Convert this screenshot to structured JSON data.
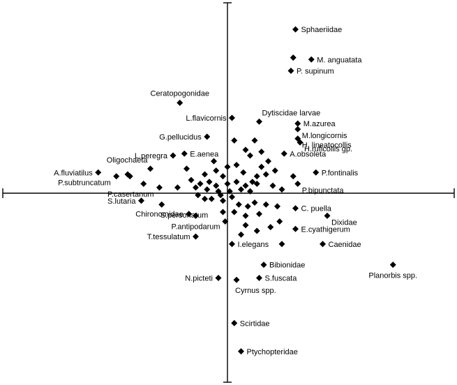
{
  "chart_data": {
    "type": "scatter",
    "title": "",
    "xlabel": "",
    "ylabel": "",
    "xlim": [
      -1.0,
      1.0
    ],
    "ylim": [
      -1.0,
      1.0
    ],
    "x_cross": 0,
    "y_cross": 0,
    "grid": false,
    "marker": "diamond",
    "marker_color": "#000000",
    "points": [
      {
        "x": 0.3,
        "y": 0.87,
        "label": "Sphaeriidae",
        "anchor": "right"
      },
      {
        "x": 0.37,
        "y": 0.71,
        "label": "M. anguatata",
        "anchor": "right"
      },
      {
        "x": 0.29,
        "y": 0.72
      },
      {
        "x": 0.28,
        "y": 0.65,
        "label": "P. supinum",
        "anchor": "right"
      },
      {
        "x": -0.21,
        "y": 0.48,
        "label": "Ceratopogonidae",
        "anchor": "above"
      },
      {
        "x": 0.02,
        "y": 0.4,
        "label": "L.flavicornis",
        "anchor": "left"
      },
      {
        "x": 0.14,
        "y": 0.38,
        "label": "Dytiscidae larvae",
        "anchor": "aboveright"
      },
      {
        "x": 0.31,
        "y": 0.37,
        "label": "M.azurea",
        "anchor": "right"
      },
      {
        "x": 0.31,
        "y": 0.34,
        "label": "M.longicornis",
        "anchor": "rightlow"
      },
      {
        "x": 0.31,
        "y": 0.29,
        "label": "H. lineatocollis",
        "anchor": "rightlow"
      },
      {
        "x": 0.32,
        "y": 0.27,
        "label": "H.ruficollis gp.",
        "anchor": "rightlow"
      },
      {
        "x": -0.09,
        "y": 0.3,
        "label": "G.pellucidus",
        "anchor": "left"
      },
      {
        "x": -0.24,
        "y": 0.2,
        "label": "L.peregra",
        "anchor": "left"
      },
      {
        "x": -0.19,
        "y": 0.21,
        "label": "E.aenea",
        "anchor": "right"
      },
      {
        "x": 0.25,
        "y": 0.21,
        "label": "A.obsoleta",
        "anchor": "right"
      },
      {
        "x": -0.57,
        "y": 0.11,
        "label": "A.fluviatilus",
        "anchor": "left"
      },
      {
        "x": -0.49,
        "y": 0.09,
        "label": "P.subtruncatum",
        "anchor": "leftlow"
      },
      {
        "x": -0.44,
        "y": 0.1
      },
      {
        "x": -0.43,
        "y": 0.09
      },
      {
        "x": -0.34,
        "y": 0.13,
        "label": "Oligochaeta",
        "anchor": "aboveleft"
      },
      {
        "x": 0.39,
        "y": 0.11,
        "label": "P.fontinalis",
        "anchor": "right"
      },
      {
        "x": 0.29,
        "y": 0.09
      },
      {
        "x": 0.31,
        "y": 0.05,
        "label": "P.bipunctata",
        "anchor": "rightlow"
      },
      {
        "x": -0.37,
        "y": 0.05
      },
      {
        "x": -0.3,
        "y": 0.03,
        "label": "P.casertanum",
        "anchor": "leftlow"
      },
      {
        "x": -0.38,
        "y": -0.04,
        "label": "S.lutaria",
        "anchor": "left"
      },
      {
        "x": -0.29,
        "y": -0.06,
        "label": "S.personatum",
        "anchor": "belowright"
      },
      {
        "x": 0.3,
        "y": -0.08,
        "label": "C. puella",
        "anchor": "right"
      },
      {
        "x": -0.17,
        "y": -0.11,
        "label": "Chironomidae",
        "anchor": "left"
      },
      {
        "x": 0.44,
        "y": -0.12,
        "label": "Dixidae",
        "anchor": "rightlow"
      },
      {
        "x": -0.14,
        "y": -0.12,
        "label": "P.antipodarum",
        "anchor": "below"
      },
      {
        "x": 0.3,
        "y": -0.19,
        "label": "E.cyathigerum",
        "anchor": "right"
      },
      {
        "x": -0.14,
        "y": -0.23,
        "label": "T.tessulatum",
        "anchor": "left"
      },
      {
        "x": 0.02,
        "y": -0.27,
        "label": "I.elegans",
        "anchor": "right"
      },
      {
        "x": 0.24,
        "y": -0.27
      },
      {
        "x": 0.42,
        "y": -0.27,
        "label": "Caenidae",
        "anchor": "right"
      },
      {
        "x": 0.73,
        "y": -0.38,
        "label": "Planorbis spp.",
        "anchor": "below"
      },
      {
        "x": 0.16,
        "y": -0.38,
        "label": "Bibionidae",
        "anchor": "right"
      },
      {
        "x": -0.04,
        "y": -0.45,
        "label": "N.picteti",
        "anchor": "left"
      },
      {
        "x": 0.04,
        "y": -0.46,
        "label": "Cyrnus spp.",
        "anchor": "belowright"
      },
      {
        "x": 0.14,
        "y": -0.45,
        "label": "S.fuscata",
        "anchor": "right"
      },
      {
        "x": 0.03,
        "y": -0.69,
        "label": "Scirtidae",
        "anchor": "right"
      },
      {
        "x": 0.06,
        "y": -0.84,
        "label": "Ptychopteridae",
        "anchor": "right"
      },
      {
        "x": -0.18,
        "y": 0.13
      },
      {
        "x": -0.1,
        "y": 0.1
      },
      {
        "x": -0.05,
        "y": 0.12
      },
      {
        "x": -0.02,
        "y": 0.09
      },
      {
        "x": 0.04,
        "y": 0.15
      },
      {
        "x": 0.07,
        "y": 0.11
      },
      {
        "x": 0.1,
        "y": 0.2
      },
      {
        "x": 0.13,
        "y": 0.09
      },
      {
        "x": 0.15,
        "y": 0.14
      },
      {
        "x": 0.18,
        "y": 0.17
      },
      {
        "x": 0.08,
        "y": 0.23
      },
      {
        "x": 0.12,
        "y": 0.28
      },
      {
        "x": -0.16,
        "y": 0.07
      },
      {
        "x": -0.12,
        "y": 0.05
      },
      {
        "x": -0.08,
        "y": 0.06
      },
      {
        "x": -0.05,
        "y": 0.04
      },
      {
        "x": 0.0,
        "y": 0.05
      },
      {
        "x": 0.04,
        "y": 0.06
      },
      {
        "x": 0.08,
        "y": 0.04
      },
      {
        "x": 0.11,
        "y": 0.06
      },
      {
        "x": 0.13,
        "y": 0.05
      },
      {
        "x": 0.2,
        "y": 0.04
      },
      {
        "x": 0.24,
        "y": 0.02
      },
      {
        "x": -0.22,
        "y": 0.03
      },
      {
        "x": -0.14,
        "y": 0.03
      },
      {
        "x": -0.09,
        "y": 0.02
      },
      {
        "x": -0.04,
        "y": 0.01
      },
      {
        "x": 0.01,
        "y": 0.01
      },
      {
        "x": 0.06,
        "y": 0.02
      },
      {
        "x": 0.1,
        "y": 0.01
      },
      {
        "x": -0.03,
        "y": -0.01
      },
      {
        "x": 0.02,
        "y": -0.02
      },
      {
        "x": -0.07,
        "y": -0.03
      },
      {
        "x": -0.02,
        "y": -0.04
      },
      {
        "x": 0.05,
        "y": -0.06
      },
      {
        "x": 0.09,
        "y": -0.07
      },
      {
        "x": 0.12,
        "y": -0.05
      },
      {
        "x": 0.17,
        "y": -0.06
      },
      {
        "x": 0.22,
        "y": -0.07
      },
      {
        "x": -0.02,
        "y": -0.1
      },
      {
        "x": 0.03,
        "y": -0.1
      },
      {
        "x": 0.08,
        "y": -0.12
      },
      {
        "x": 0.14,
        "y": -0.11
      },
      {
        "x": 0.23,
        "y": -0.15
      },
      {
        "x": 0.19,
        "y": -0.18
      },
      {
        "x": -0.01,
        "y": -0.15
      },
      {
        "x": 0.08,
        "y": -0.17
      },
      {
        "x": 0.13,
        "y": -0.2
      },
      {
        "x": 0.06,
        "y": -0.22
      },
      {
        "x": -0.1,
        "y": -0.03
      },
      {
        "x": -0.13,
        "y": -0.01
      },
      {
        "x": 0.17,
        "y": 0.1
      },
      {
        "x": 0.21,
        "y": 0.12
      },
      {
        "x": 0.03,
        "y": 0.28
      },
      {
        "x": -0.06,
        "y": 0.17
      },
      {
        "x": 0.0,
        "y": 0.14
      },
      {
        "x": 0.15,
        "y": 0.22
      }
    ]
  }
}
